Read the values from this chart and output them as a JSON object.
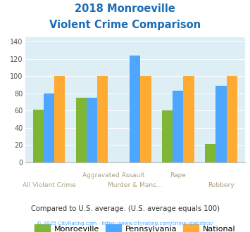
{
  "title_line1": "2018 Monroeville",
  "title_line2": "Violent Crime Comparison",
  "categories": [
    "All Violent Crime",
    "Aggravated Assault",
    "Murder & Mans...",
    "Rape",
    "Robbery"
  ],
  "series_monroeville": [
    61,
    75,
    0,
    60,
    21
  ],
  "series_pennsylvania": [
    80,
    75,
    124,
    83,
    89
  ],
  "series_national": [
    100,
    100,
    100,
    100,
    100
  ],
  "color_monroeville": "#7db733",
  "color_pennsylvania": "#4da6ff",
  "color_national": "#ffaa33",
  "ylim": [
    0,
    145
  ],
  "yticks": [
    0,
    20,
    40,
    60,
    80,
    100,
    120,
    140
  ],
  "plot_bg": "#ddeef5",
  "title_color": "#1a6cb5",
  "xlabel_top_color": "#aaa080",
  "xlabel_bot_color": "#aaa080",
  "grid_color": "#ffffff",
  "subtitle": "Compared to U.S. average. (U.S. average equals 100)",
  "footer_left": "© 2025 CityRating.com - ",
  "footer_link": "https://www.cityrating.com/crime-statistics/",
  "subtitle_color": "#333333",
  "footer_color": "#888888",
  "footer_link_color": "#4da6ff",
  "legend_labels": [
    "Monroeville",
    "Pennsylvania",
    "National"
  ]
}
